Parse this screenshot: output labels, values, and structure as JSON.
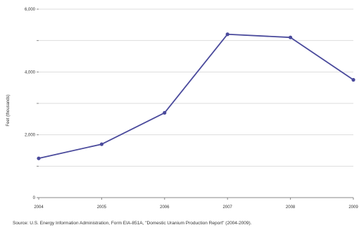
{
  "chart_data": {
    "type": "line",
    "x": [
      "2004",
      "2005",
      "2006",
      "2007",
      "2008",
      "2009"
    ],
    "series": [
      {
        "values": [
          1250,
          1700,
          2700,
          5200,
          5100,
          3750
        ]
      }
    ],
    "ylim": [
      0,
      6000
    ],
    "yticks": [
      0,
      1000,
      2000,
      3000,
      4000,
      5000,
      6000
    ],
    "ytick_labels": [
      "0",
      "",
      "2,000",
      "",
      "4,000",
      "",
      "6,000"
    ],
    "ylabel": "Feet (thousands)",
    "xlabel": "",
    "title": "",
    "grid": true,
    "colors": {
      "line": "#4a4a9c",
      "grid": "#dddddd",
      "axis": "#888888"
    }
  },
  "source": "Source: U.S. Energy Information Administration, Form EIA-851A, \"Domestic Uranium Production Report\" (2004-2009)."
}
